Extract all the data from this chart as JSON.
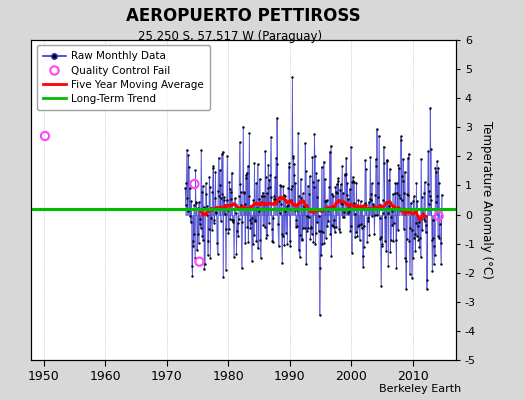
{
  "title": "AEROPUERTO PETTIROSS",
  "subtitle": "25.250 S, 57.517 W (Paraguay)",
  "ylabel": "Temperature Anomaly (°C)",
  "credit": "Berkeley Earth",
  "xlim": [
    1948,
    2017
  ],
  "ylim": [
    -5,
    6
  ],
  "yticks": [
    -5,
    -4,
    -3,
    -2,
    -1,
    0,
    1,
    2,
    3,
    4,
    5,
    6
  ],
  "xticks": [
    1950,
    1960,
    1970,
    1980,
    1990,
    2000,
    2010
  ],
  "data_start_year": 1973.0,
  "data_end_year": 2014.67,
  "long_term_trend_value": 0.18,
  "background_color": "#d8d8d8",
  "plot_bg_color": "#ffffff",
  "raw_line_color": "#3333cc",
  "raw_dot_color": "#000000",
  "moving_avg_color": "#ff0000",
  "trend_color": "#00bb00",
  "qc_fail_color": "#ff44ff",
  "qc_fail_points": [
    [
      1950.2,
      2.7
    ],
    [
      1974.5,
      1.05
    ],
    [
      1975.3,
      -1.62
    ],
    [
      2014.2,
      -0.05
    ]
  ],
  "seed": 42,
  "figwidth": 5.24,
  "figheight": 4.0,
  "dpi": 100
}
